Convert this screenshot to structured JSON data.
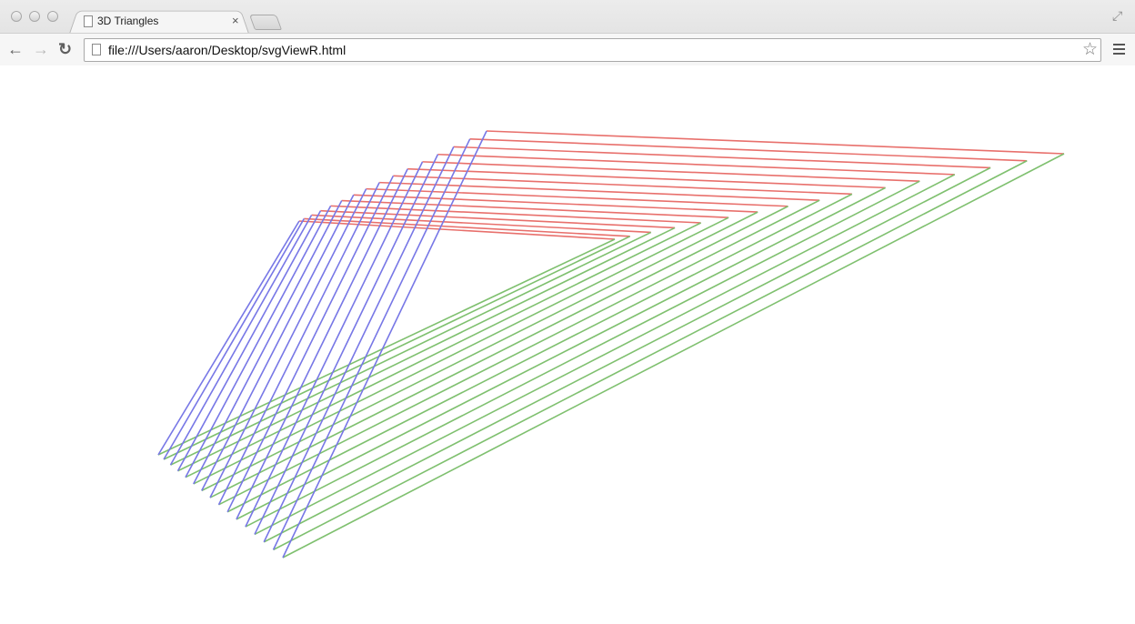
{
  "window": {
    "tab_title": "3D Triangles",
    "tab_close_glyph": "×",
    "fullscreen_glyph": "⤢"
  },
  "toolbar": {
    "back_glyph": "←",
    "forward_glyph": "→",
    "reload_glyph": "↻",
    "url": "file:///Users/aaron/Desktop/svgViewR.html",
    "star_glyph": "☆"
  },
  "scene": {
    "triangle_count": 16,
    "edges": [
      {
        "name": "red-edges",
        "color": "#e8706c"
      },
      {
        "name": "green-edges",
        "color": "#7fc06f"
      },
      {
        "name": "blue-edges",
        "color": "#7777e6"
      }
    ]
  }
}
